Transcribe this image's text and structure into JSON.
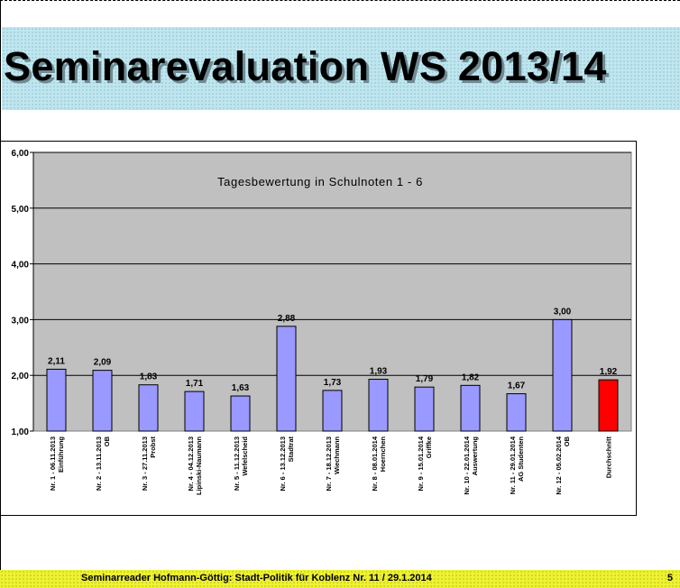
{
  "slide": {
    "title": "Seminarevaluation WS 2013/14",
    "footer_text": "Seminarreader Hofmann-Göttig: Stadt-Politik für Koblenz Nr. 11 / 29.1.2014",
    "page_number": "5"
  },
  "colors": {
    "title_band": "#bfe6ef",
    "plot_area": "#c0c0c0",
    "bar_default": "#9999ff",
    "bar_highlight": "#ff0000",
    "footer_band": "#eef235"
  },
  "chart_data": {
    "type": "bar",
    "title": "Tagesbewertung in Schulnoten 1 - 6",
    "xlabel": "",
    "ylabel": "",
    "ylim": [
      1,
      6
    ],
    "yticks": [
      "1,00",
      "2,00",
      "3,00",
      "4,00",
      "5,00",
      "6,00"
    ],
    "grid": true,
    "legend": "none",
    "categories": [
      [
        "Nr. 1 - 06.11.2013",
        "Einführung"
      ],
      [
        "Nr. 2 - 13.11.2013",
        "OB"
      ],
      [
        "Nr. 3 - 27.11.2013",
        "Probst"
      ],
      [
        "Nr. 4 - 04.12.2013",
        "Lipinski-Naumann"
      ],
      [
        "Nr. 5 - 11.12.2013",
        "Wefelscheid"
      ],
      [
        "Nr. 6 - 13.12.2013",
        "Stadtrat"
      ],
      [
        "Nr. 7 - 18.12.2013",
        "Wiechmann"
      ],
      [
        "Nr. 8 - 08.01.2014",
        "Hoernchen"
      ],
      [
        "Nr. 9 - 15.01.2014",
        "Griffke"
      ],
      [
        "Nr. 10 - 22.01.2014",
        "Auswertung"
      ],
      [
        "Nr. 11 - 29.01.2014",
        "AG Studenten"
      ],
      [
        "Nr. 12 - 05.02.2014",
        "OB"
      ],
      [
        "Durchschnitt"
      ]
    ],
    "values": [
      2.11,
      2.09,
      1.83,
      1.71,
      1.63,
      2.88,
      1.73,
      1.93,
      1.79,
      1.82,
      1.67,
      3.0,
      1.92
    ],
    "value_labels": [
      "2,11",
      "2,09",
      "1,83",
      "1,71",
      "1,63",
      "2,88",
      "1,73",
      "1,93",
      "1,79",
      "1,82",
      "1,67",
      "3,00",
      "1,92"
    ],
    "highlight_index": 12
  }
}
